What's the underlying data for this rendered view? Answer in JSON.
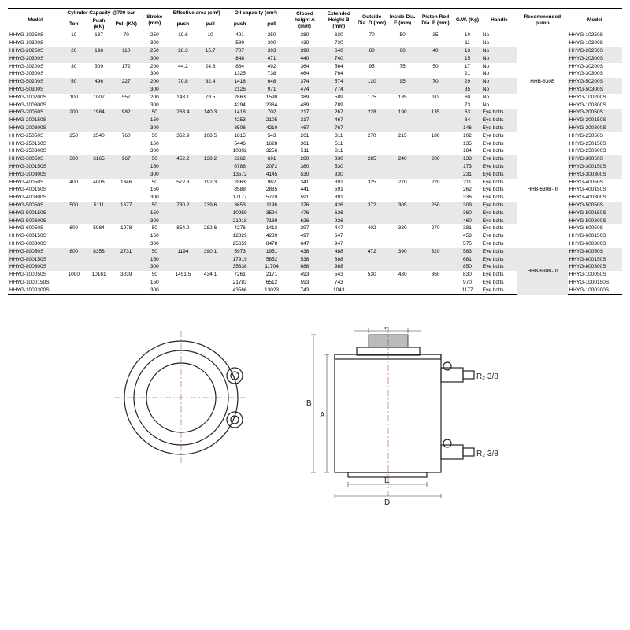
{
  "headers1": [
    "Model",
    "Cylinder Capacity @700 bar",
    "",
    "",
    "Stroke (mm)",
    "Effective area (cm²)",
    "",
    "Oil capacity (cm³)",
    "",
    "Closed height A (mm)",
    "Extended Height B (mm)",
    "Outside Dia. D (mm)",
    "Inside Dia. E (mm)",
    "Piston Rod Dia. F (mm)",
    "G.W. (Kg)",
    "Handle",
    "Recommended pump",
    "Model"
  ],
  "headers2": [
    "",
    "Ton",
    "Push (KN)",
    "Pull (KN)",
    "",
    "push",
    "pull",
    "push",
    "pull",
    "",
    "",
    "",
    "",
    "",
    "",
    "",
    "",
    ""
  ],
  "groups": [
    {
      "stripe": false,
      "pump": "HHB-630B",
      "rows": [
        {
          "m": "HHYG-10250S",
          "t": "10",
          "pk": "137",
          "pl": "70",
          "s": "250",
          "ep": "19.6",
          "el": "10",
          "op": "491",
          "ol": "250",
          "a": "380",
          "b": "630",
          "d": "70",
          "e": "50",
          "f": "35",
          "g": "10",
          "h": "No"
        },
        {
          "m": "HHYG-10300S",
          "t": "",
          "pk": "",
          "pl": "",
          "s": "300",
          "ep": "",
          "el": "",
          "op": "589",
          "ol": "300",
          "a": "430",
          "b": "730",
          "d": "",
          "e": "",
          "f": "",
          "g": "11",
          "h": "No"
        }
      ]
    },
    {
      "stripe": true,
      "rows": [
        {
          "m": "HHYG-20250S",
          "t": "20",
          "pk": "198",
          "pl": "110",
          "s": "250",
          "ep": "28.3",
          "el": "15.7",
          "op": "707",
          "ol": "393",
          "a": "390",
          "b": "640",
          "d": "80",
          "e": "60",
          "f": "40",
          "g": "13",
          "h": "No"
        },
        {
          "m": "HHYG-20300S",
          "t": "",
          "pk": "",
          "pl": "",
          "s": "300",
          "ep": "",
          "el": "",
          "op": "848",
          "ol": "471",
          "a": "440",
          "b": "740",
          "d": "",
          "e": "",
          "f": "",
          "g": "15",
          "h": "No"
        }
      ]
    },
    {
      "stripe": false,
      "rows": [
        {
          "m": "HHYG-30200S",
          "t": "30",
          "pk": "309",
          "pl": "172",
          "s": "200",
          "ep": "44.2",
          "el": "24.6",
          "op": "884",
          "ol": "492",
          "a": "364",
          "b": "564",
          "d": "95",
          "e": "75",
          "f": "50",
          "g": "17",
          "h": "No"
        },
        {
          "m": "HHYG-30300S",
          "t": "",
          "pk": "",
          "pl": "",
          "s": "300",
          "ep": "",
          "el": "",
          "op": "1325",
          "ol": "738",
          "a": "464",
          "b": "764",
          "d": "",
          "e": "",
          "f": "",
          "g": "21",
          "h": "No"
        }
      ]
    },
    {
      "stripe": true,
      "rows": [
        {
          "m": "HHYG-50200S",
          "t": "50",
          "pk": "496",
          "pl": "227",
          "s": "200",
          "ep": "70.8",
          "el": "32.4",
          "op": "1418",
          "ol": "648",
          "a": "374",
          "b": "574",
          "d": "120",
          "e": "95",
          "f": "70",
          "g": "29",
          "h": "No"
        },
        {
          "m": "HHYG-50300S",
          "t": "",
          "pk": "",
          "pl": "",
          "s": "300",
          "ep": "",
          "el": "",
          "op": "2126",
          "ol": "971",
          "a": "474",
          "b": "774",
          "d": "",
          "e": "",
          "f": "",
          "g": "35",
          "h": "No"
        }
      ]
    },
    {
      "stripe": false,
      "rows": [
        {
          "m": "HHYG-100200S",
          "t": "100",
          "pk": "1002",
          "pl": "557",
          "s": "200",
          "ep": "143.1",
          "el": "79.5",
          "op": "2863",
          "ol": "1590",
          "a": "389",
          "b": "589",
          "d": "175",
          "e": "135",
          "f": "90",
          "g": "60",
          "h": "No"
        },
        {
          "m": "HHYG-100300S",
          "t": "",
          "pk": "",
          "pl": "",
          "s": "300",
          "ep": "",
          "el": "",
          "op": "4294",
          "ol": "2384",
          "a": "489",
          "b": "789",
          "d": "",
          "e": "",
          "f": "",
          "g": "73",
          "h": "No"
        }
      ]
    },
    {
      "stripe": true,
      "rows": [
        {
          "m": "HHYG-20050S",
          "t": "200",
          "pk": "1984",
          "pl": "982",
          "s": "50",
          "ep": "283.4",
          "el": "140.3",
          "op": "1418",
          "ol": "702",
          "a": "217",
          "b": "267",
          "d": "228",
          "e": "190",
          "f": "135",
          "g": "63",
          "h": "Eye bolts"
        },
        {
          "m": "HHYG-200150S",
          "t": "",
          "pk": "",
          "pl": "",
          "s": "150",
          "ep": "",
          "el": "",
          "op": "4253",
          "ol": "2105",
          "a": "317",
          "b": "467",
          "d": "",
          "e": "",
          "f": "",
          "g": "84",
          "h": "Eye bolts"
        },
        {
          "m": "HHYG-200300S",
          "t": "",
          "pk": "",
          "pl": "",
          "s": "300",
          "ep": "",
          "el": "",
          "op": "8506",
          "ol": "4210",
          "a": "467",
          "b": "767",
          "d": "",
          "e": "",
          "f": "",
          "g": "146",
          "h": "Eye bolts"
        }
      ]
    },
    {
      "stripe": false,
      "pump": "HHB-630B-III",
      "rows": [
        {
          "m": "HHYG-25050S",
          "t": "250",
          "pk": "2540",
          "pl": "760",
          "s": "50",
          "ep": "362.9",
          "el": "108.5",
          "op": "1815",
          "ol": "543",
          "a": "261",
          "b": "311",
          "d": "270",
          "e": "215",
          "f": "180",
          "g": "102",
          "h": "Eye bolts"
        },
        {
          "m": "HHYG-250150S",
          "t": "",
          "pk": "",
          "pl": "",
          "s": "150",
          "ep": "",
          "el": "",
          "op": "5446",
          "ol": "1628",
          "a": "361",
          "b": "511",
          "d": "",
          "e": "",
          "f": "",
          "g": "135",
          "h": "Eye bolts"
        },
        {
          "m": "HHYG-250300S",
          "t": "",
          "pk": "",
          "pl": "",
          "s": "300",
          "ep": "",
          "el": "",
          "op": "10892",
          "ol": "3256",
          "a": "511",
          "b": "811",
          "d": "",
          "e": "",
          "f": "",
          "g": "184",
          "h": "Eye bolts"
        }
      ]
    },
    {
      "stripe": true,
      "rows": [
        {
          "m": "HHYG-30050S",
          "t": "300",
          "pk": "3165",
          "pl": "967",
          "s": "50",
          "ep": "452.2",
          "el": "138.2",
          "op": "2262",
          "ol": "691",
          "a": "280",
          "b": "330",
          "d": "285",
          "e": "240",
          "f": "200",
          "g": "133",
          "h": "Eye bolts"
        },
        {
          "m": "HHYG-300150S",
          "t": "",
          "pk": "",
          "pl": "",
          "s": "150",
          "ep": "",
          "el": "",
          "op": "6786",
          "ol": "2072",
          "a": "380",
          "b": "530",
          "d": "",
          "e": "",
          "f": "",
          "g": "173",
          "h": "Eye bolts"
        },
        {
          "m": "HHYG-300300S",
          "t": "",
          "pk": "",
          "pl": "",
          "s": "300",
          "ep": "",
          "el": "",
          "op": "13572",
          "ol": "4145",
          "a": "530",
          "b": "830",
          "d": "",
          "e": "",
          "f": "",
          "g": "231",
          "h": "Eye bolts"
        }
      ]
    },
    {
      "stripe": false,
      "rows": [
        {
          "m": "HHYG-40050S",
          "t": "400",
          "pk": "4006",
          "pl": "1346",
          "s": "50",
          "ep": "572.3",
          "el": "192.3",
          "op": "2863",
          "ol": "962",
          "a": "341",
          "b": "391",
          "d": "325",
          "e": "270",
          "f": "220",
          "g": "211",
          "h": "Eye bolts"
        },
        {
          "m": "HHYG-400150S",
          "t": "",
          "pk": "",
          "pl": "",
          "s": "150",
          "ep": "",
          "el": "",
          "op": "8588",
          "ol": "2885",
          "a": "441",
          "b": "591",
          "d": "",
          "e": "",
          "f": "",
          "g": "262",
          "h": "Eye bolts"
        },
        {
          "m": "HHYG-400300S",
          "t": "",
          "pk": "",
          "pl": "",
          "s": "300",
          "ep": "",
          "el": "",
          "op": "17177",
          "ol": "5770",
          "a": "591",
          "b": "891",
          "d": "",
          "e": "",
          "f": "",
          "g": "336",
          "h": "Eye bolts"
        }
      ]
    },
    {
      "stripe": true,
      "rows": [
        {
          "m": "HHYG-50050S",
          "t": "500",
          "pk": "5111",
          "pl": "1677",
          "s": "50",
          "ep": "730.2",
          "el": "239.6",
          "op": "3653",
          "ol": "1198",
          "a": "376",
          "b": "426",
          "d": "372",
          "e": "305",
          "f": "250",
          "g": "309",
          "h": "Eye bolts"
        },
        {
          "m": "HHYG-500150S",
          "t": "",
          "pk": "",
          "pl": "",
          "s": "150",
          "ep": "",
          "el": "",
          "op": "10959",
          "ol": "3594",
          "a": "476",
          "b": "626",
          "d": "",
          "e": "",
          "f": "",
          "g": "360",
          "h": "Eye bolts"
        },
        {
          "m": "HHYG-500300S",
          "t": "",
          "pk": "",
          "pl": "",
          "s": "300",
          "ep": "",
          "el": "",
          "op": "21918",
          "ol": "7189",
          "a": "626",
          "b": "926",
          "d": "",
          "e": "",
          "f": "",
          "g": "460",
          "h": "Eye bolts"
        }
      ]
    },
    {
      "stripe": false,
      "rows": [
        {
          "m": "HHYG-60050S",
          "t": "600",
          "pk": "5984",
          "pl": "1978",
          "s": "50",
          "ep": "854.9",
          "el": "282.6",
          "op": "4276",
          "ol": "1413",
          "a": "397",
          "b": "447",
          "d": "402",
          "e": "330",
          "f": "270",
          "g": "381",
          "h": "Eye bolts"
        },
        {
          "m": "HHYG-600150S",
          "t": "",
          "pk": "",
          "pl": "",
          "s": "150",
          "ep": "",
          "el": "",
          "op": "12829",
          "ol": "4239",
          "a": "497",
          "b": "647",
          "d": "",
          "e": "",
          "f": "",
          "g": "458",
          "h": "Eye bolts"
        },
        {
          "m": "HHYG-600300S",
          "t": "",
          "pk": "",
          "pl": "",
          "s": "300",
          "ep": "",
          "el": "",
          "op": "25659",
          "ol": "8478",
          "a": "647",
          "b": "947",
          "d": "",
          "e": "",
          "f": "",
          "g": "575",
          "h": "Eye bolts"
        }
      ]
    },
    {
      "stripe": true,
      "pump": "HHB-630B-III",
      "rows": [
        {
          "m": "HHYG-80050S",
          "t": "800",
          "pk": "8358",
          "pl": "2731",
          "s": "50",
          "ep": "1194",
          "el": "390.1",
          "op": "5973",
          "ol": "1951",
          "a": "438",
          "b": "488",
          "d": "472",
          "e": "390",
          "f": "320",
          "g": "583",
          "h": "Eye bolts"
        },
        {
          "m": "HHYG-800150S",
          "t": "",
          "pk": "",
          "pl": "",
          "s": "150",
          "ep": "",
          "el": "",
          "op": "17919",
          "ol": "5852",
          "a": "538",
          "b": "688",
          "d": "",
          "e": "",
          "f": "",
          "g": "681",
          "h": "Eye bolts"
        },
        {
          "m": "HHYG-800300S",
          "t": "",
          "pk": "",
          "pl": "",
          "s": "300",
          "ep": "",
          "el": "",
          "op": "35838",
          "ol": "11704",
          "a": "688",
          "b": "988",
          "d": "",
          "e": "",
          "f": "",
          "g": "850",
          "h": "Eye bolts"
        }
      ]
    },
    {
      "stripe": false,
      "rows": [
        {
          "m": "HHYG-100050S",
          "t": "1000",
          "pk": "10161",
          "pl": "3039",
          "s": "50",
          "ep": "1451.5",
          "el": "434.1",
          "op": "7261",
          "ol": "2171",
          "a": "493",
          "b": "543",
          "d": "530",
          "e": "430",
          "f": "360",
          "g": "830",
          "h": "Eye bolts"
        },
        {
          "m": "HHYG-1000150S",
          "t": "",
          "pk": "",
          "pl": "",
          "s": "150",
          "ep": "",
          "el": "",
          "op": "21783",
          "ol": "6512",
          "a": "593",
          "b": "743",
          "d": "",
          "e": "",
          "f": "",
          "g": "970",
          "h": "Eye bolts"
        },
        {
          "m": "HHYG-1000300S",
          "t": "",
          "pk": "",
          "pl": "",
          "s": "300",
          "ep": "",
          "el": "",
          "op": "43566",
          "ol": "13023",
          "a": "743",
          "b": "1043",
          "d": "",
          "e": "",
          "f": "",
          "g": "1177",
          "h": "Eye bolts"
        }
      ]
    }
  ],
  "diagram": {
    "labels": {
      "F": "F",
      "A": "A",
      "B": "B",
      "D": "D",
      "E": "E",
      "R1": "R₂ 3/8",
      "R2": "R₂ 3/8"
    }
  }
}
